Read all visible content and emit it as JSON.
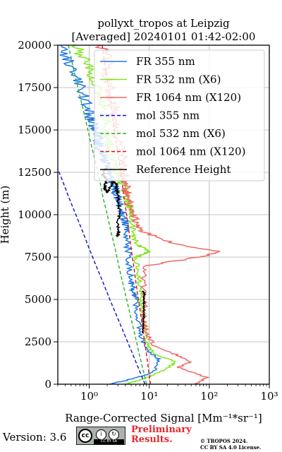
{
  "chart_data": {
    "type": "line",
    "title": "pollyxt_tropos at Leipzig",
    "subtitle": "[Averaged] 20240101 01:42-02:00",
    "xlabel": "Range-Corrected Signal [Mm⁻¹*sr⁻¹]",
    "ylabel": "Height (m)",
    "xscale": "log",
    "xlim": [
      0.3,
      1000
    ],
    "ylim": [
      0,
      20000
    ],
    "xticks": [
      1,
      10,
      100,
      1000
    ],
    "xtick_labels": [
      "10⁰",
      "10¹",
      "10²",
      "10³"
    ],
    "yticks": [
      0,
      2500,
      5000,
      7500,
      10000,
      12500,
      15000,
      17500,
      20000
    ],
    "grid": true,
    "legend_position": "top-right",
    "series": [
      {
        "name": "FR 355 nm",
        "color": "#1f77e4",
        "style": "solid",
        "x": [
          2.2,
          5.0,
          12.0,
          14.0,
          9.0,
          7.0,
          6.5,
          5.8,
          5.5,
          5.0,
          4.7,
          4.5,
          4.1,
          3.9,
          3.6,
          3.3,
          3.0,
          2.7,
          2.5,
          2.2,
          1.9,
          1.7,
          1.5,
          1.4,
          1.3,
          1.1,
          1.0,
          0.8,
          0.6,
          0.45,
          0.35
        ],
        "y": [
          0,
          300,
          700,
          1500,
          2000,
          3000,
          4000,
          5000,
          5500,
          6000,
          7000,
          8000,
          9000,
          9500,
          10000,
          10500,
          11000,
          11500,
          12000,
          12500,
          13000,
          13500,
          14000,
          14500,
          15000,
          15500,
          16000,
          17000,
          18000,
          19000,
          20000
        ]
      },
      {
        "name": "FR 532 nm (X6)",
        "color": "#7fe51c",
        "style": "solid",
        "x": [
          4.0,
          8.0,
          17.0,
          28.0,
          12.0,
          9.0,
          8.2,
          7.6,
          7.1,
          6.4,
          6.2,
          10.0,
          6.5,
          5.4,
          5.0,
          4.6,
          4.2,
          3.8,
          3.4,
          3.0,
          2.6,
          2.2,
          2.0,
          1.8,
          1.5,
          1.2,
          0.9,
          0.6
        ],
        "y": [
          0,
          300,
          800,
          1300,
          1800,
          2500,
          3500,
          4500,
          5500,
          6500,
          7500,
          7800,
          8200,
          9000,
          10000,
          10500,
          11000,
          11500,
          12000,
          12500,
          13000,
          14000,
          15000,
          16000,
          17000,
          18000,
          19000,
          20000
        ]
      },
      {
        "name": "FR 1064 nm (X120)",
        "color": "#ee6a66",
        "style": "solid",
        "x": [
          60.0,
          90.0,
          30.0,
          50.0,
          30.0,
          12.0,
          9.0,
          8.0,
          8.5,
          8.0,
          9.0,
          70.0,
          150.0,
          25.0,
          8.0,
          6.0,
          5.5,
          5.0,
          4.5,
          4.2,
          4.0,
          3.8,
          3.5,
          3.0,
          2.8,
          2.5,
          2.3,
          2.0,
          1.8,
          1.6
        ],
        "y": [
          0,
          400,
          1000,
          1300,
          1700,
          2300,
          3000,
          4000,
          5000,
          6000,
          7000,
          7500,
          7800,
          8300,
          9000,
          9500,
          10000,
          10500,
          11000,
          11500,
          12000,
          12500,
          13500,
          14500,
          15500,
          16500,
          17500,
          18500,
          19500,
          20000
        ]
      },
      {
        "name": "mol 355 nm",
        "color": "#0d0dc8",
        "style": "dashed",
        "x": [
          8.5,
          6.5,
          5.0,
          3.8,
          2.9,
          2.2,
          1.7,
          1.3,
          1.0,
          0.78,
          0.6,
          0.46,
          0.36,
          0.3
        ],
        "y": [
          0,
          1000,
          2000,
          3000,
          4000,
          5000,
          6000,
          7000,
          8000,
          9000,
          10000,
          11000,
          12000,
          12700
        ]
      },
      {
        "name": "mol 532 nm (X6)",
        "color": "#1fb51f",
        "style": "dashed",
        "x": [
          9.0,
          7.7,
          6.6,
          5.7,
          4.9,
          4.2,
          3.6,
          3.1,
          2.7,
          2.3,
          2.0,
          1.7,
          1.5,
          1.3,
          1.1,
          0.95,
          0.82,
          0.7,
          0.6,
          0.52,
          0.45
        ],
        "y": [
          0,
          1000,
          2000,
          3000,
          4000,
          5000,
          6000,
          7000,
          8000,
          9000,
          10000,
          11000,
          12000,
          13000,
          14000,
          15000,
          16000,
          17000,
          18000,
          19000,
          20000
        ]
      },
      {
        "name": "mol 1064 nm (X120)",
        "color": "#d3141c",
        "style": "dashed",
        "x": [
          10.5,
          9.6,
          8.8,
          8.0,
          7.3,
          6.6,
          6.0,
          5.5,
          5.0,
          4.6,
          4.2,
          3.8,
          3.5,
          3.2,
          2.9,
          2.6,
          2.4,
          2.2,
          2.0,
          1.8,
          1.65
        ],
        "y": [
          0,
          1000,
          2000,
          3000,
          4000,
          5000,
          6000,
          7000,
          8000,
          9000,
          10000,
          11000,
          12000,
          13000,
          14000,
          15000,
          16000,
          17000,
          18000,
          19000,
          20000
        ]
      },
      {
        "name": "Reference Height",
        "color": "#000000",
        "style": "solid",
        "segments": [
          {
            "x": [
              7.8,
              8.0,
              8.1,
              8.2,
              8.1,
              8.3,
              8.0
            ],
            "y": [
              3000,
              3500,
              4000,
              4500,
              5000,
              5300,
              5500
            ]
          },
          {
            "x": [
              3.0,
              3.1,
              3.0,
              3.2,
              3.1,
              3.0,
              2.9,
              2.8,
              2.5,
              2.3,
              2.0,
              1.8,
              1.9,
              2.0,
              1.7,
              1.8,
              2.0
            ],
            "y": [
              8700,
              9000,
              9500,
              10000,
              10500,
              11000,
              11500,
              11800,
              12000,
              11700,
              11300,
              11500,
              11800,
              12100,
              12300,
              12600,
              12800
            ]
          }
        ]
      }
    ]
  },
  "footer": {
    "version": "Version: 3.6",
    "cc_label": "CC BY SA",
    "preliminary_line1": "Preliminary",
    "preliminary_line2": "Results.",
    "copyright_line1": "© TROPOS 2024.",
    "copyright_line2": "CC BY SA 4.0 License."
  },
  "colors": {
    "preliminary": "#e8262a",
    "grid": "#b0b0b0"
  }
}
